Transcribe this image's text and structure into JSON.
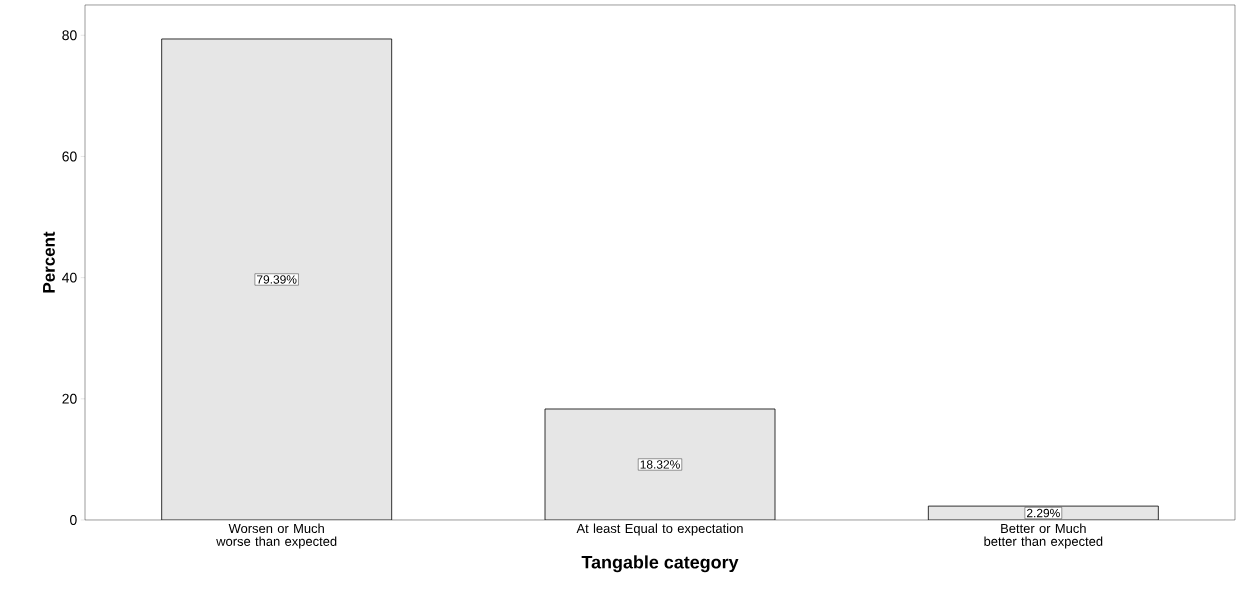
{
  "chart_data": {
    "type": "bar",
    "xlabel": "Tangable category",
    "ylabel": "Percent",
    "categories": [
      "Worsen or Much worse than expected",
      "At least Equal to expectation",
      "Better or Much better than expected"
    ],
    "values": [
      79.39,
      18.32,
      2.29
    ],
    "value_labels": [
      "79.39%",
      "18.32%",
      "2.29%"
    ],
    "color": "#e6e6e6",
    "ylim": [
      0,
      85
    ],
    "yticks": [
      0,
      20,
      40,
      60,
      80
    ],
    "grid": false
  }
}
